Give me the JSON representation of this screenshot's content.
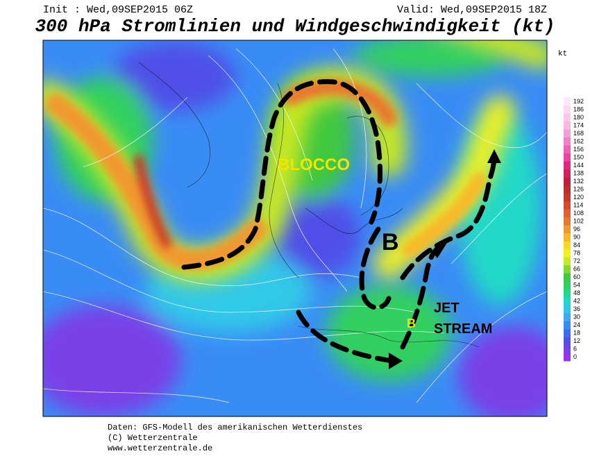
{
  "header": {
    "init": "Init : Wed,09SEP2015 06Z",
    "valid": "Valid: Wed,09SEP2015 18Z",
    "title": "300 hPa Stromlinien und Windgeschwindigkeit (kt)"
  },
  "colorbar": {
    "unit": "kt",
    "levels": [
      0,
      6,
      12,
      18,
      24,
      30,
      36,
      42,
      48,
      54,
      60,
      66,
      72,
      78,
      84,
      90,
      96,
      102,
      108,
      114,
      120,
      126,
      132,
      138,
      144,
      150,
      156,
      162,
      168,
      174,
      180,
      186,
      192
    ],
    "colors": [
      "#9a30f0",
      "#7a40e8",
      "#5050e8",
      "#3c6cf0",
      "#3a8cf5",
      "#40a8f0",
      "#30c8e8",
      "#20d8c8",
      "#20d890",
      "#30d060",
      "#40c840",
      "#80d830",
      "#c8e820",
      "#f0f020",
      "#f8d820",
      "#f8b828",
      "#f09830",
      "#e87830",
      "#e06030",
      "#d84830",
      "#c83828",
      "#b83030",
      "#c02040",
      "#d02060",
      "#e02880",
      "#f040a0",
      "#f060b8",
      "#f080c8",
      "#f0a0d8",
      "#f8b8e0",
      "#f8c8e8",
      "#fcd8f0",
      "#fce8f8"
    ]
  },
  "annotations": {
    "blocco": "BLOCCO",
    "b_main": "B",
    "jet": "JET",
    "stream": "STREAM",
    "b_small": "B"
  },
  "footer": {
    "line1": "Daten: GFS-Modell des amerikanischen Wetterdienstes",
    "line2": "(C) Wetterzentrale",
    "line3": "www.wetterzentrale.de"
  }
}
